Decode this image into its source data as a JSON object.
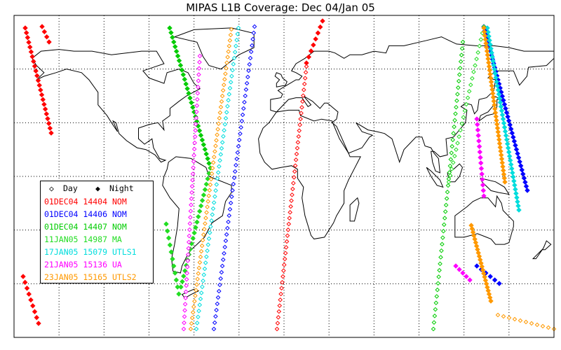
{
  "title": "MIPAS L1B Coverage: Dec 04/Jan 05",
  "legend": {
    "day_label": "Day",
    "night_label": "Night",
    "entries": [
      {
        "date": "01DEC04",
        "orbit": "14404",
        "mode": "NOM",
        "color": "#ff0000"
      },
      {
        "date": "01DEC04",
        "orbit": "14406",
        "mode": "NOM",
        "color": "#0000ff"
      },
      {
        "date": "01DEC04",
        "orbit": "14407",
        "mode": "NOM",
        "color": "#00cc00"
      },
      {
        "date": "11JAN05",
        "orbit": "14987",
        "mode": "MA",
        "color": "#22dd22"
      },
      {
        "date": "17JAN05",
        "orbit": "15079",
        "mode": "UTLS1",
        "color": "#00dddd"
      },
      {
        "date": "21JAN05",
        "orbit": "15136",
        "mode": "UA",
        "color": "#ff00ff"
      },
      {
        "date": "23JAN05",
        "orbit": "15165",
        "mode": "UTLS2",
        "color": "#ff9900"
      }
    ]
  },
  "map": {
    "projection": "cylindrical",
    "lon_range": [
      -180,
      180
    ],
    "lat_range": [
      -90,
      90
    ],
    "grid_spacing_deg": 30,
    "grid": true
  }
}
